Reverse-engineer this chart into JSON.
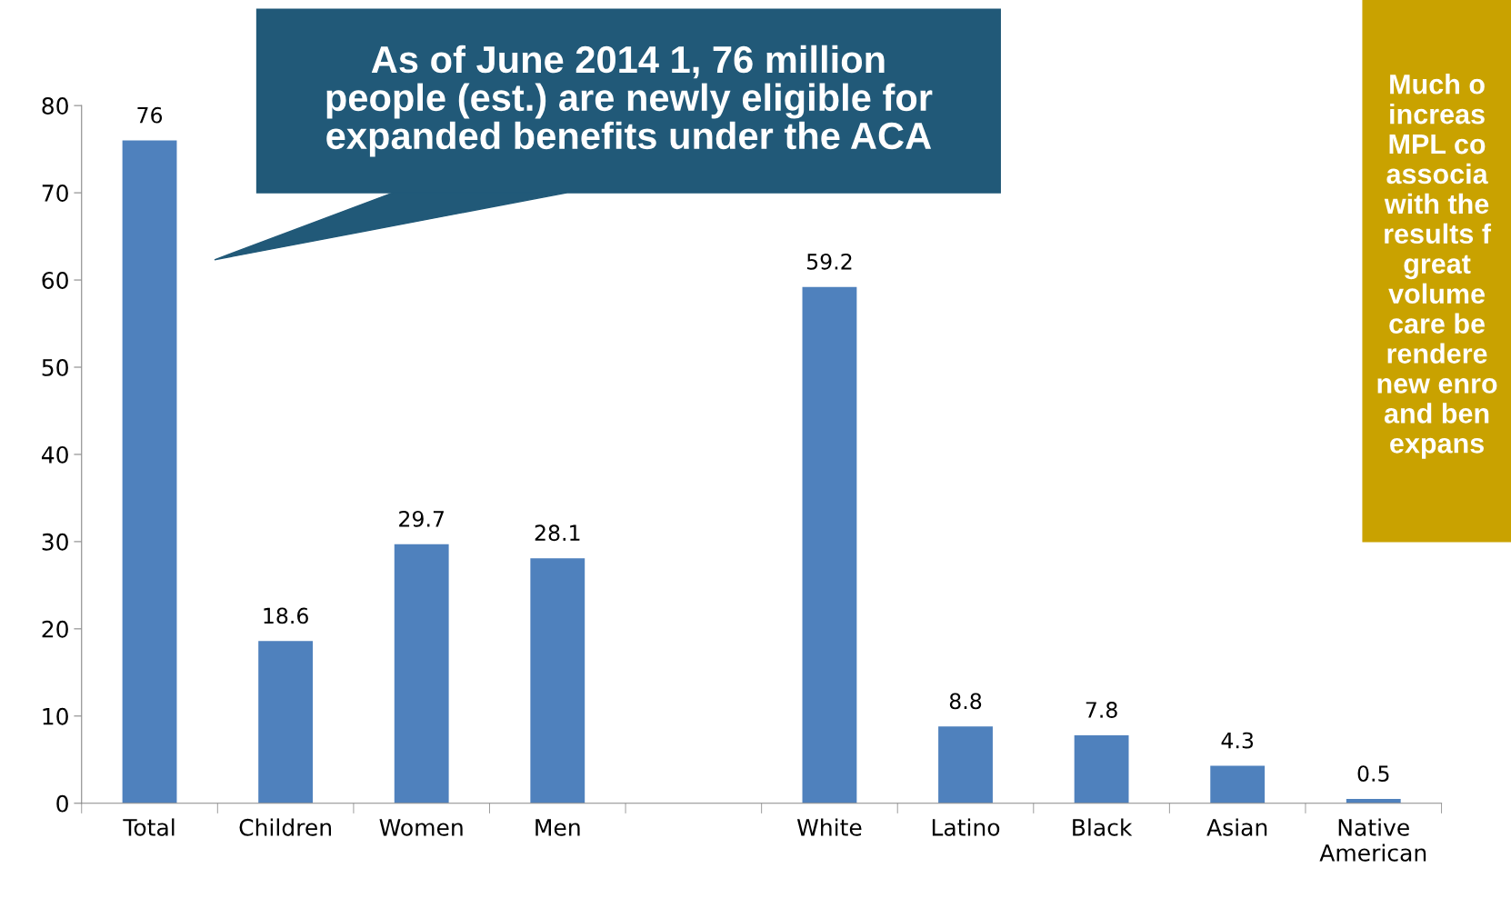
{
  "chart_data": {
    "type": "bar",
    "categories": [
      "Total",
      "Children",
      "Women",
      "Men",
      null,
      "White",
      "Latino",
      "Black",
      "Asian",
      "Native\nAmerican"
    ],
    "values": [
      76,
      18.6,
      29.7,
      28.1,
      null,
      59.2,
      8.8,
      7.8,
      4.3,
      0.5
    ],
    "color": "#4f81bd",
    "ylim": [
      0,
      80
    ],
    "yticks": [
      0,
      10,
      20,
      30,
      40,
      50,
      60,
      70,
      80
    ],
    "grid": false,
    "data_labels": true,
    "annotations": [
      "As of June 2014 1, 76 million\npeople (est.) are newly eligible for\nexpanded benefits under the ACA",
      "Much o\nincreas\nMPL co\nassocia\nwith the\nresults f\ngreat\nvolume\ncare be\nrendere\nnew enro\nand ben\nexpans"
    ]
  }
}
